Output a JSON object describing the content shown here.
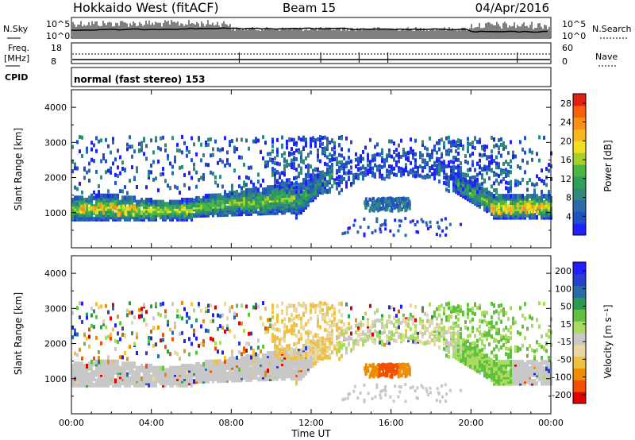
{
  "header": {
    "station": "Hokkaido West (fitACF)",
    "beam": "Beam 15",
    "date": "04/Apr/2016"
  },
  "top_panels": {
    "nsky_label": "N.Sky",
    "nsearch_label": "N.Search",
    "noise_top": "10^5",
    "noise_bottom": "10^0",
    "noise_top_right": "10^5",
    "noise_bottom_right": "10^0",
    "freq_label_1": "Freq.",
    "freq_label_2": "[MHz]",
    "freq_top": "18",
    "freq_bottom": "8",
    "nave_label": "Nave",
    "nave_top": "60",
    "nave_bottom": "0",
    "cpid_label": "CPID",
    "cpid_value": "normal (fast stereo) 153"
  },
  "colors": {
    "power_scale": [
      "#2020ff",
      "#2050c8",
      "#2a6aa8",
      "#2f8a7a",
      "#2fa05a",
      "#4ab840",
      "#a8d02a",
      "#f0e020",
      "#f8b820",
      "#f89018",
      "#f86010",
      "#e02010"
    ],
    "velocity_scale": [
      "#e00000",
      "#f05000",
      "#f08c00",
      "#f0c040",
      "#e6d8a0",
      "#c8c8c8",
      "#a8dc60",
      "#60c040",
      "#2a9a50",
      "#2a6aa8",
      "#2a40c8",
      "#2020ff"
    ]
  },
  "chart_data": [
    {
      "type": "heatmap",
      "name": "Power",
      "xlabel": "",
      "ylabel": "Slant Range [km]",
      "xlim": [
        "00:00",
        "24:00"
      ],
      "ylim": [
        0,
        4500
      ],
      "yticks": [
        "1000",
        "2000",
        "3000",
        "4000"
      ],
      "colorbar_label": "Power [dB]",
      "colorbar_ticks": [
        "4",
        "8",
        "12",
        "16",
        "20",
        "24",
        "28"
      ],
      "colorbar_range": [
        0,
        30
      ],
      "grid": false
    },
    {
      "type": "heatmap",
      "name": "Velocity",
      "xlabel": "Time UT",
      "ylabel": "Slant Range [km]",
      "xlim": [
        "00:00",
        "24:00"
      ],
      "ylim": [
        0,
        4500
      ],
      "xticks": [
        "00:00",
        "04:00",
        "08:00",
        "12:00",
        "16:00",
        "20:00",
        "00:00"
      ],
      "yticks": [
        "1000",
        "2000",
        "3000",
        "4000"
      ],
      "colorbar_label": "Velocity [m s⁻¹]",
      "colorbar_ticks": [
        "-200",
        "-100",
        "-50",
        "-15",
        "15",
        "50",
        "100",
        "200"
      ],
      "colorbar_range": [
        -250,
        250
      ],
      "grid": false
    }
  ]
}
